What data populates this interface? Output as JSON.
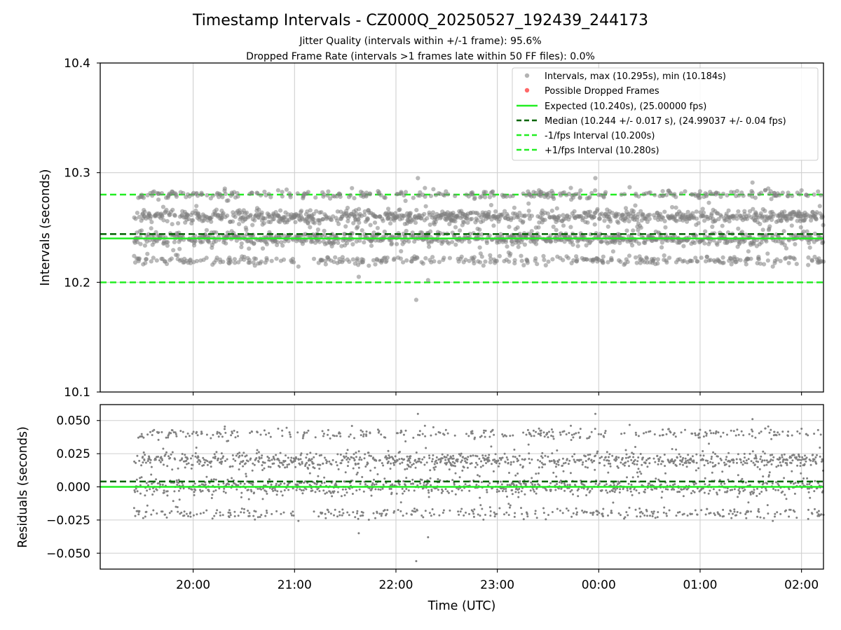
{
  "figure": {
    "title": "Timestamp Intervals - CZ000Q_20250527_192439_244173",
    "subtitle1": "Jitter Quality (intervals within +/-1 frame): 95.6%",
    "subtitle2": "Dropped Frame Rate (intervals >1 frames late within 50 FF files): 0.0%"
  },
  "colors": {
    "points": "#808080",
    "dropped": "#ff4d4d",
    "expected": "#22ee22",
    "median": "#006400",
    "fps_interval": "#22ee22",
    "grid": "#cfcfcf"
  },
  "chart_data": [
    {
      "type": "scatter",
      "panel": "intervals",
      "xlabel": "",
      "ylabel": "Intervals (seconds)",
      "xlim": [
        "19:05",
        "02:13"
      ],
      "ylim": [
        10.1,
        10.4
      ],
      "yticks": [
        "10.1",
        "10.2",
        "10.3",
        "10.4"
      ],
      "grid": true,
      "legend_position": "upper right",
      "legend": [
        {
          "label": "Intervals, max (10.295s), min (10.184s)",
          "kind": "marker",
          "color": "#808080"
        },
        {
          "label": "Possible Dropped Frames",
          "kind": "marker",
          "color": "#ff4d4d"
        },
        {
          "label": "Expected (10.240s), (25.00000 fps)",
          "kind": "solid",
          "color": "#22ee22"
        },
        {
          "label": "Median (10.244 +/- 0.017 s), (24.99037 +/- 0.04 fps)",
          "kind": "dashed",
          "color": "#006400"
        },
        {
          "label": "-1/fps Interval (10.200s)",
          "kind": "dashed",
          "color": "#22ee22"
        },
        {
          "label": "+1/fps Interval (10.280s)",
          "kind": "dashed",
          "color": "#22ee22"
        }
      ],
      "reference_lines": {
        "expected": 10.24,
        "median": 10.244,
        "minus_fps": 10.2,
        "plus_fps": 10.28
      },
      "series": {
        "name": "Intervals, max (10.295s), min (10.184s)",
        "x_start": "19:25",
        "x_end": "02:13",
        "count": 2390,
        "expected": 10.24,
        "bands": [
          {
            "value": 10.24,
            "spread": 0.003,
            "share": 0.3
          },
          {
            "value": 10.26,
            "spread": 0.003,
            "share": 0.38
          },
          {
            "value": 10.22,
            "spread": 0.002,
            "share": 0.14
          },
          {
            "value": 10.28,
            "spread": 0.002,
            "share": 0.12
          },
          {
            "value": 10.25,
            "spread": 0.012,
            "share": 0.06
          }
        ],
        "extremes": [
          {
            "x": "22:12",
            "y": 10.184
          },
          {
            "x": "22:13",
            "y": 10.295
          },
          {
            "x": "23:58",
            "y": 10.295
          },
          {
            "x": "22:19",
            "y": 10.202
          },
          {
            "x": "21:38",
            "y": 10.205
          },
          {
            "x": "01:31",
            "y": 10.291
          }
        ]
      }
    },
    {
      "type": "scatter",
      "panel": "residuals",
      "xlabel": "Time (UTC)",
      "ylabel": "Residuals (seconds)",
      "xlim": [
        "19:05",
        "02:13"
      ],
      "ylim": [
        -0.062,
        0.062
      ],
      "yticks": [
        "−0.050",
        "−0.025",
        "0.000",
        "0.025",
        "0.050"
      ],
      "xticks": [
        "20:00",
        "21:00",
        "22:00",
        "23:00",
        "00:00",
        "01:00",
        "02:00"
      ],
      "grid": true,
      "reference_lines": {
        "zero": 0.0,
        "median_offset": 0.004
      },
      "series": {
        "name": "Residuals",
        "relation": "interval minus expected (10.240s)"
      }
    }
  ]
}
